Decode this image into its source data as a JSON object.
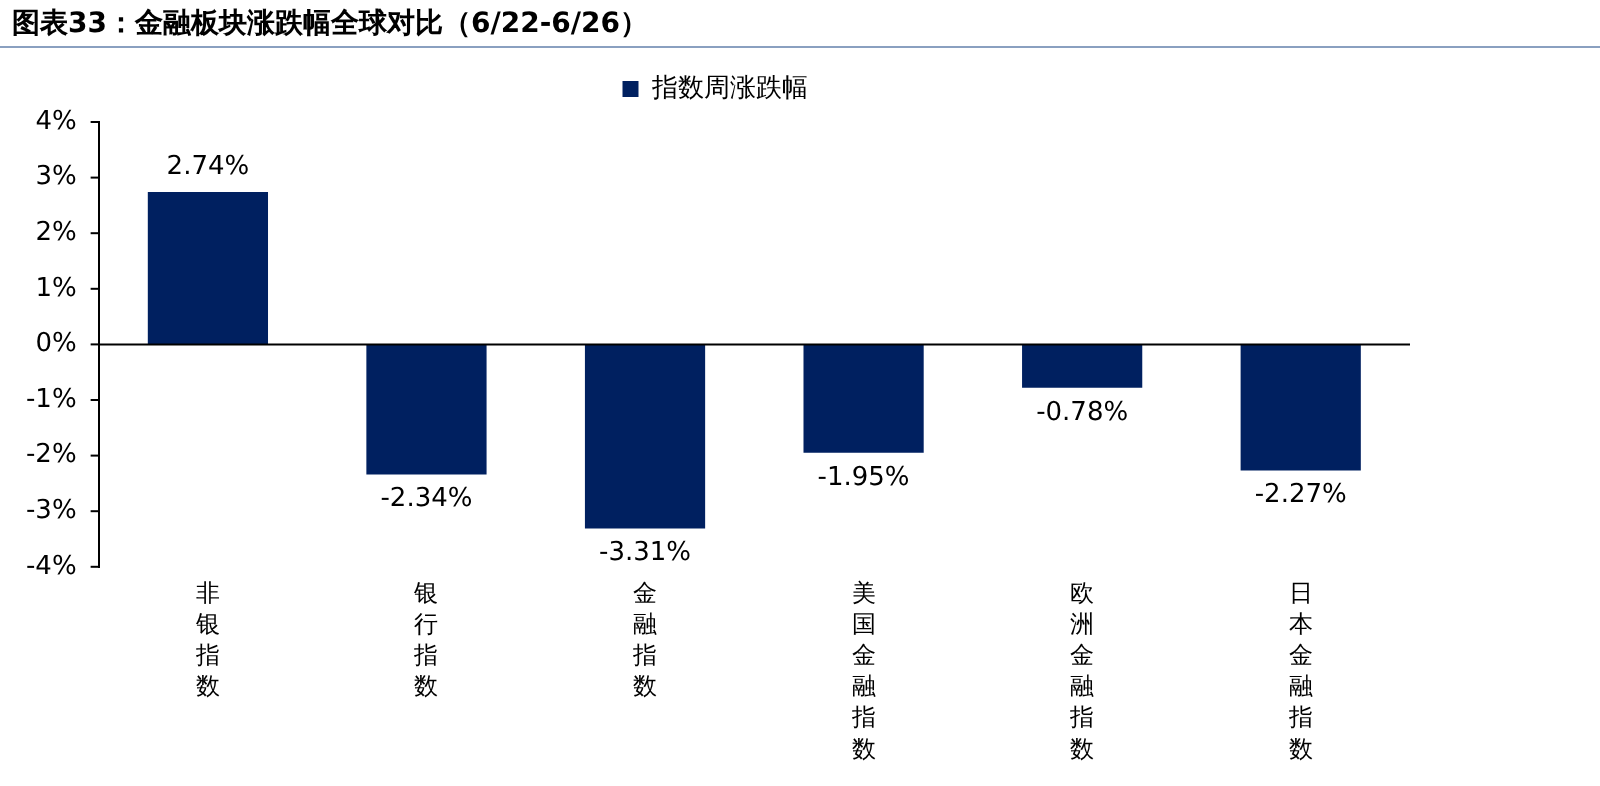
{
  "chart_data": {
    "type": "bar",
    "title": "图表33：金融板块涨跌幅全球对比（6/22-6/26）",
    "categories": [
      "非银指数",
      "银行指数",
      "金融指数",
      "美国金融指数",
      "欧洲金融指数",
      "日本金融指数"
    ],
    "series": [
      {
        "name": "指数周涨跌幅",
        "color": "#002060",
        "values": [
          2.74,
          -2.34,
          -3.31,
          -1.95,
          -0.78,
          -2.27
        ],
        "value_labels": [
          "2.74%",
          "-2.34%",
          "-3.31%",
          "-1.95%",
          "-0.78%",
          "-2.27%"
        ]
      }
    ],
    "ylim": [
      -4,
      4
    ],
    "yticks": [
      {
        "value": -4,
        "label": "-4%"
      },
      {
        "value": -3,
        "label": "-3%"
      },
      {
        "value": -2,
        "label": "-2%"
      },
      {
        "value": -1,
        "label": "-1%"
      },
      {
        "value": 0,
        "label": "0%"
      },
      {
        "value": 1,
        "label": "1%"
      },
      {
        "value": 2,
        "label": "2%"
      },
      {
        "value": 3,
        "label": "3%"
      },
      {
        "value": 4,
        "label": "4%"
      }
    ],
    "ref_lines": [
      {
        "axis": "y",
        "value": 0,
        "color": "#000000"
      }
    ],
    "grid": false,
    "legend": "top"
  }
}
